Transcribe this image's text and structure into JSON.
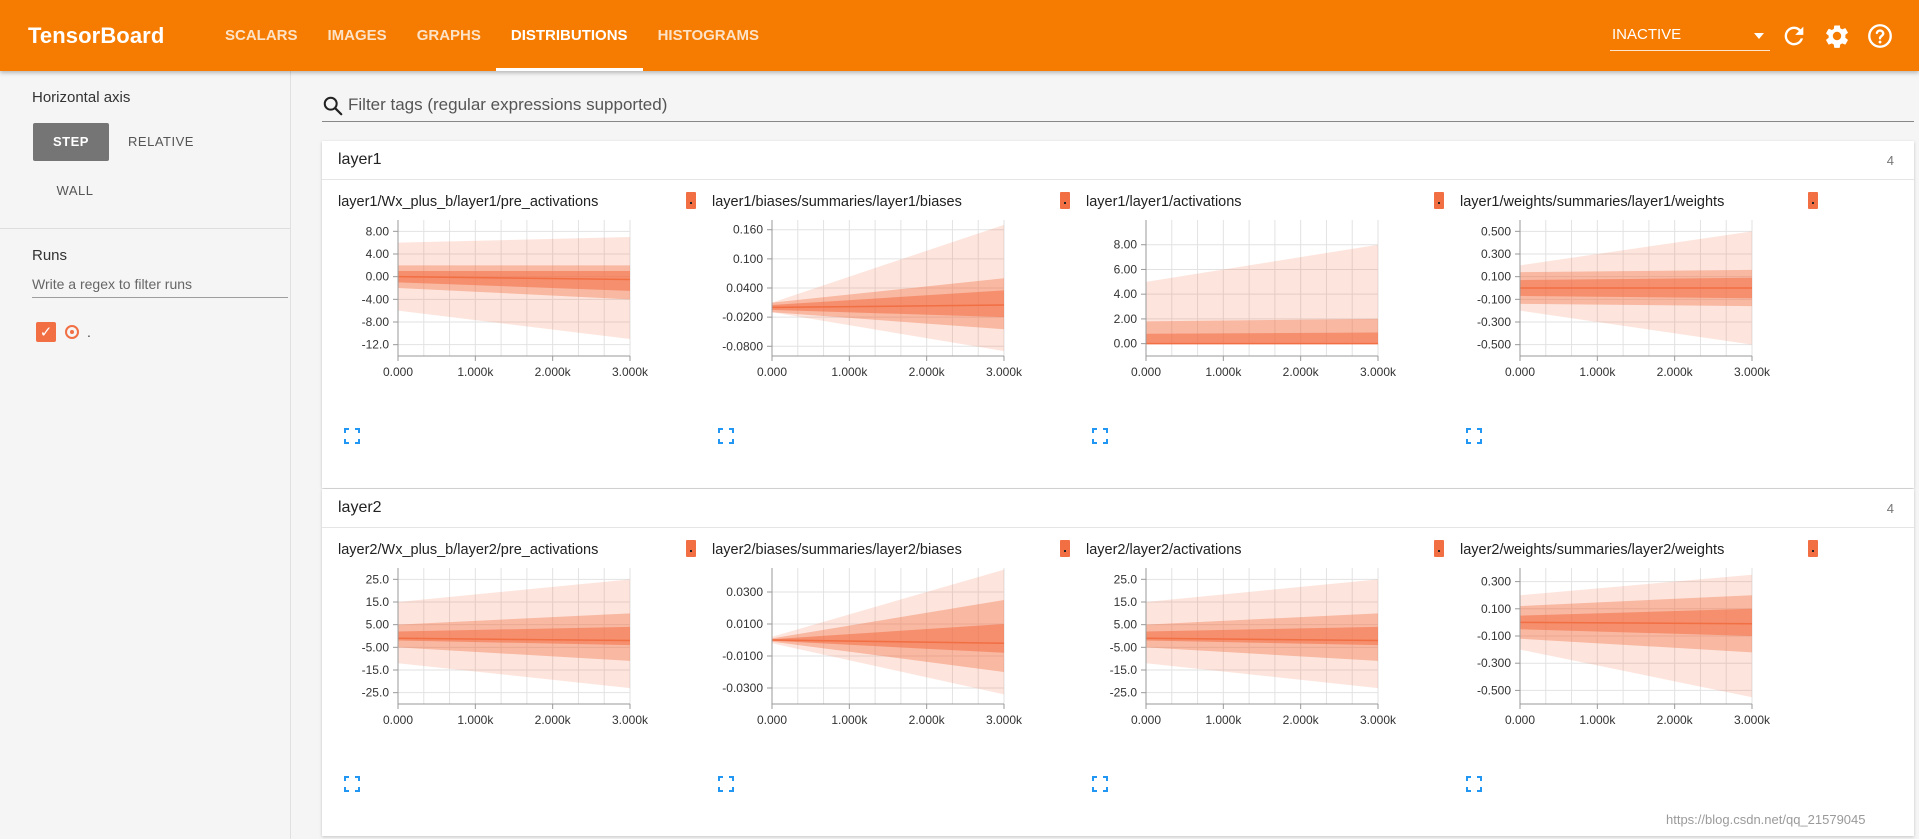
{
  "header": {
    "brand": "TensorBoard",
    "tabs": [
      "SCALARS",
      "IMAGES",
      "GRAPHS",
      "DISTRIBUTIONS",
      "HISTOGRAMS"
    ],
    "active_tab_index": 3,
    "run_selector": "INACTIVE",
    "icons": [
      "refresh-icon",
      "settings-icon",
      "help-icon"
    ]
  },
  "sidebar": {
    "horizontal_axis_title": "Horizontal axis",
    "axis_options": [
      "STEP",
      "RELATIVE",
      "WALL"
    ],
    "selected_axis": "STEP",
    "runs_title": "Runs",
    "runs_filter_placeholder": "Write a regex to filter runs",
    "runs": [
      {
        "label": ".",
        "checked": true,
        "color": "#f26e43"
      }
    ]
  },
  "main": {
    "filter_placeholder": "Filter tags (regular expressions supported)",
    "categories": [
      {
        "name": "layer1",
        "count": "4",
        "cards": [
          {
            "title": "layer1/Wx_plus_b/layer1/pre_activations"
          },
          {
            "title": "layer1/biases/summaries/layer1/biases"
          },
          {
            "title": "layer1/layer1/activations"
          },
          {
            "title": "layer1/weights/summaries/layer1/weights"
          }
        ]
      },
      {
        "name": "layer2",
        "count": "4",
        "cards": [
          {
            "title": "layer2/Wx_plus_b/layer2/pre_activations"
          },
          {
            "title": "layer2/biases/summaries/layer2/biases"
          },
          {
            "title": "layer2/layer2/activations"
          },
          {
            "title": "layer2/weights/summaries/layer2/weights"
          }
        ]
      }
    ]
  },
  "watermark": "https://blog.csdn.net/qq_21579045",
  "colors": {
    "accent": "#f57c00",
    "series": "#f26e43"
  },
  "chart_data": [
    {
      "type": "area",
      "title": "layer1/Wx_plus_b/layer1/pre_activations",
      "x_ticks": [
        "0.000",
        "1.000k",
        "2.000k",
        "3.000k"
      ],
      "y_ticks": [
        "8.00",
        "4.00",
        "0.00",
        "-4.00",
        "-8.00",
        "-12.0"
      ],
      "xlim": [
        0,
        3000
      ],
      "ylim": [
        -14,
        10
      ],
      "x": [
        0,
        3000
      ],
      "bands": [
        {
          "lower": [
            -6,
            -11
          ],
          "upper": [
            6,
            7
          ]
        },
        {
          "lower": [
            -2,
            -4
          ],
          "upper": [
            2,
            2
          ]
        },
        {
          "lower": [
            -1,
            -2.5
          ],
          "upper": [
            1,
            1
          ]
        }
      ],
      "median": [
        0,
        -0.5
      ]
    },
    {
      "type": "area",
      "title": "layer1/biases/summaries/layer1/biases",
      "x_ticks": [
        "0.000",
        "1.000k",
        "2.000k",
        "3.000k"
      ],
      "y_ticks": [
        "0.160",
        "0.100",
        "0.0400",
        "-0.0200",
        "-0.0800"
      ],
      "xlim": [
        0,
        3000
      ],
      "ylim": [
        -0.1,
        0.18
      ],
      "x": [
        0,
        3000
      ],
      "bands": [
        {
          "lower": [
            -0.01,
            -0.09
          ],
          "upper": [
            0.01,
            0.17
          ]
        },
        {
          "lower": [
            -0.01,
            -0.045
          ],
          "upper": [
            0.01,
            0.06
          ]
        },
        {
          "lower": [
            -0.005,
            -0.02
          ],
          "upper": [
            0.005,
            0.035
          ]
        }
      ],
      "median": [
        0,
        0.005
      ]
    },
    {
      "type": "area",
      "title": "layer1/layer1/activations",
      "x_ticks": [
        "0.000",
        "1.000k",
        "2.000k",
        "3.000k"
      ],
      "y_ticks": [
        "8.00",
        "6.00",
        "4.00",
        "2.00",
        "0.00"
      ],
      "xlim": [
        0,
        3000
      ],
      "ylim": [
        -1,
        10
      ],
      "x": [
        0,
        3000
      ],
      "bands": [
        {
          "lower": [
            0,
            0
          ],
          "upper": [
            5,
            8
          ]
        },
        {
          "lower": [
            0,
            0
          ],
          "upper": [
            1.8,
            2
          ]
        },
        {
          "lower": [
            0,
            0
          ],
          "upper": [
            0.8,
            0.9
          ]
        }
      ],
      "median": [
        0,
        0
      ]
    },
    {
      "type": "area",
      "title": "layer1/weights/summaries/layer1/weights",
      "x_ticks": [
        "0.000",
        "1.000k",
        "2.000k",
        "3.000k"
      ],
      "y_ticks": [
        "0.500",
        "0.300",
        "0.100",
        "-0.100",
        "-0.300",
        "-0.500"
      ],
      "xlim": [
        0,
        3000
      ],
      "ylim": [
        -0.6,
        0.6
      ],
      "x": [
        0,
        3000
      ],
      "bands": [
        {
          "lower": [
            -0.2,
            -0.5
          ],
          "upper": [
            0.2,
            0.5
          ]
        },
        {
          "lower": [
            -0.14,
            -0.16
          ],
          "upper": [
            0.14,
            0.16
          ]
        },
        {
          "lower": [
            -0.07,
            -0.09
          ],
          "upper": [
            0.07,
            0.09
          ]
        }
      ],
      "median": [
        0,
        0
      ]
    },
    {
      "type": "area",
      "title": "layer2/Wx_plus_b/layer2/pre_activations",
      "x_ticks": [
        "0.000",
        "1.000k",
        "2.000k",
        "3.000k"
      ],
      "y_ticks": [
        "25.0",
        "15.0",
        "5.00",
        "-5.00",
        "-15.0",
        "-25.0"
      ],
      "xlim": [
        0,
        3000
      ],
      "ylim": [
        -30,
        30
      ],
      "x": [
        0,
        3000
      ],
      "bands": [
        {
          "lower": [
            -12,
            -23
          ],
          "upper": [
            15,
            25
          ]
        },
        {
          "lower": [
            -5,
            -11
          ],
          "upper": [
            5,
            10
          ]
        },
        {
          "lower": [
            -2,
            -4
          ],
          "upper": [
            2,
            4
          ]
        }
      ],
      "median": [
        -1,
        -2
      ]
    },
    {
      "type": "area",
      "title": "layer2/biases/summaries/layer2/biases",
      "x_ticks": [
        "0.000",
        "1.000k",
        "2.000k",
        "3.000k"
      ],
      "y_ticks": [
        "0.0300",
        "0.0100",
        "-0.0100",
        "-0.0300"
      ],
      "xlim": [
        0,
        3000
      ],
      "ylim": [
        -0.04,
        0.045
      ],
      "x": [
        0,
        3000
      ],
      "bands": [
        {
          "lower": [
            -0.002,
            -0.034
          ],
          "upper": [
            0.002,
            0.044
          ]
        },
        {
          "lower": [
            -0.001,
            -0.02
          ],
          "upper": [
            0.001,
            0.025
          ]
        },
        {
          "lower": [
            -0.0005,
            -0.008
          ],
          "upper": [
            0.0005,
            0.01
          ]
        }
      ],
      "median": [
        0,
        -0.002
      ]
    },
    {
      "type": "area",
      "title": "layer2/layer2/activations",
      "x_ticks": [
        "0.000",
        "1.000k",
        "2.000k",
        "3.000k"
      ],
      "y_ticks": [
        "25.0",
        "15.0",
        "5.00",
        "-5.00",
        "-15.0",
        "-25.0"
      ],
      "xlim": [
        0,
        3000
      ],
      "ylim": [
        -30,
        30
      ],
      "x": [
        0,
        3000
      ],
      "bands": [
        {
          "lower": [
            -12,
            -23
          ],
          "upper": [
            15,
            25
          ]
        },
        {
          "lower": [
            -5,
            -11
          ],
          "upper": [
            5,
            10
          ]
        },
        {
          "lower": [
            -2,
            -4
          ],
          "upper": [
            2,
            4
          ]
        }
      ],
      "median": [
        -1,
        -2
      ]
    },
    {
      "type": "area",
      "title": "layer2/weights/summaries/layer2/weights",
      "x_ticks": [
        "0.000",
        "1.000k",
        "2.000k",
        "3.000k"
      ],
      "y_ticks": [
        "0.300",
        "0.100",
        "-0.100",
        "-0.300",
        "-0.500"
      ],
      "xlim": [
        0,
        3000
      ],
      "ylim": [
        -0.6,
        0.4
      ],
      "x": [
        0,
        3000
      ],
      "bands": [
        {
          "lower": [
            -0.2,
            -0.55
          ],
          "upper": [
            0.2,
            0.35
          ]
        },
        {
          "lower": [
            -0.12,
            -0.22
          ],
          "upper": [
            0.12,
            0.2
          ]
        },
        {
          "lower": [
            -0.05,
            -0.1
          ],
          "upper": [
            0.05,
            0.1
          ]
        }
      ],
      "median": [
        0,
        -0.01
      ]
    }
  ]
}
